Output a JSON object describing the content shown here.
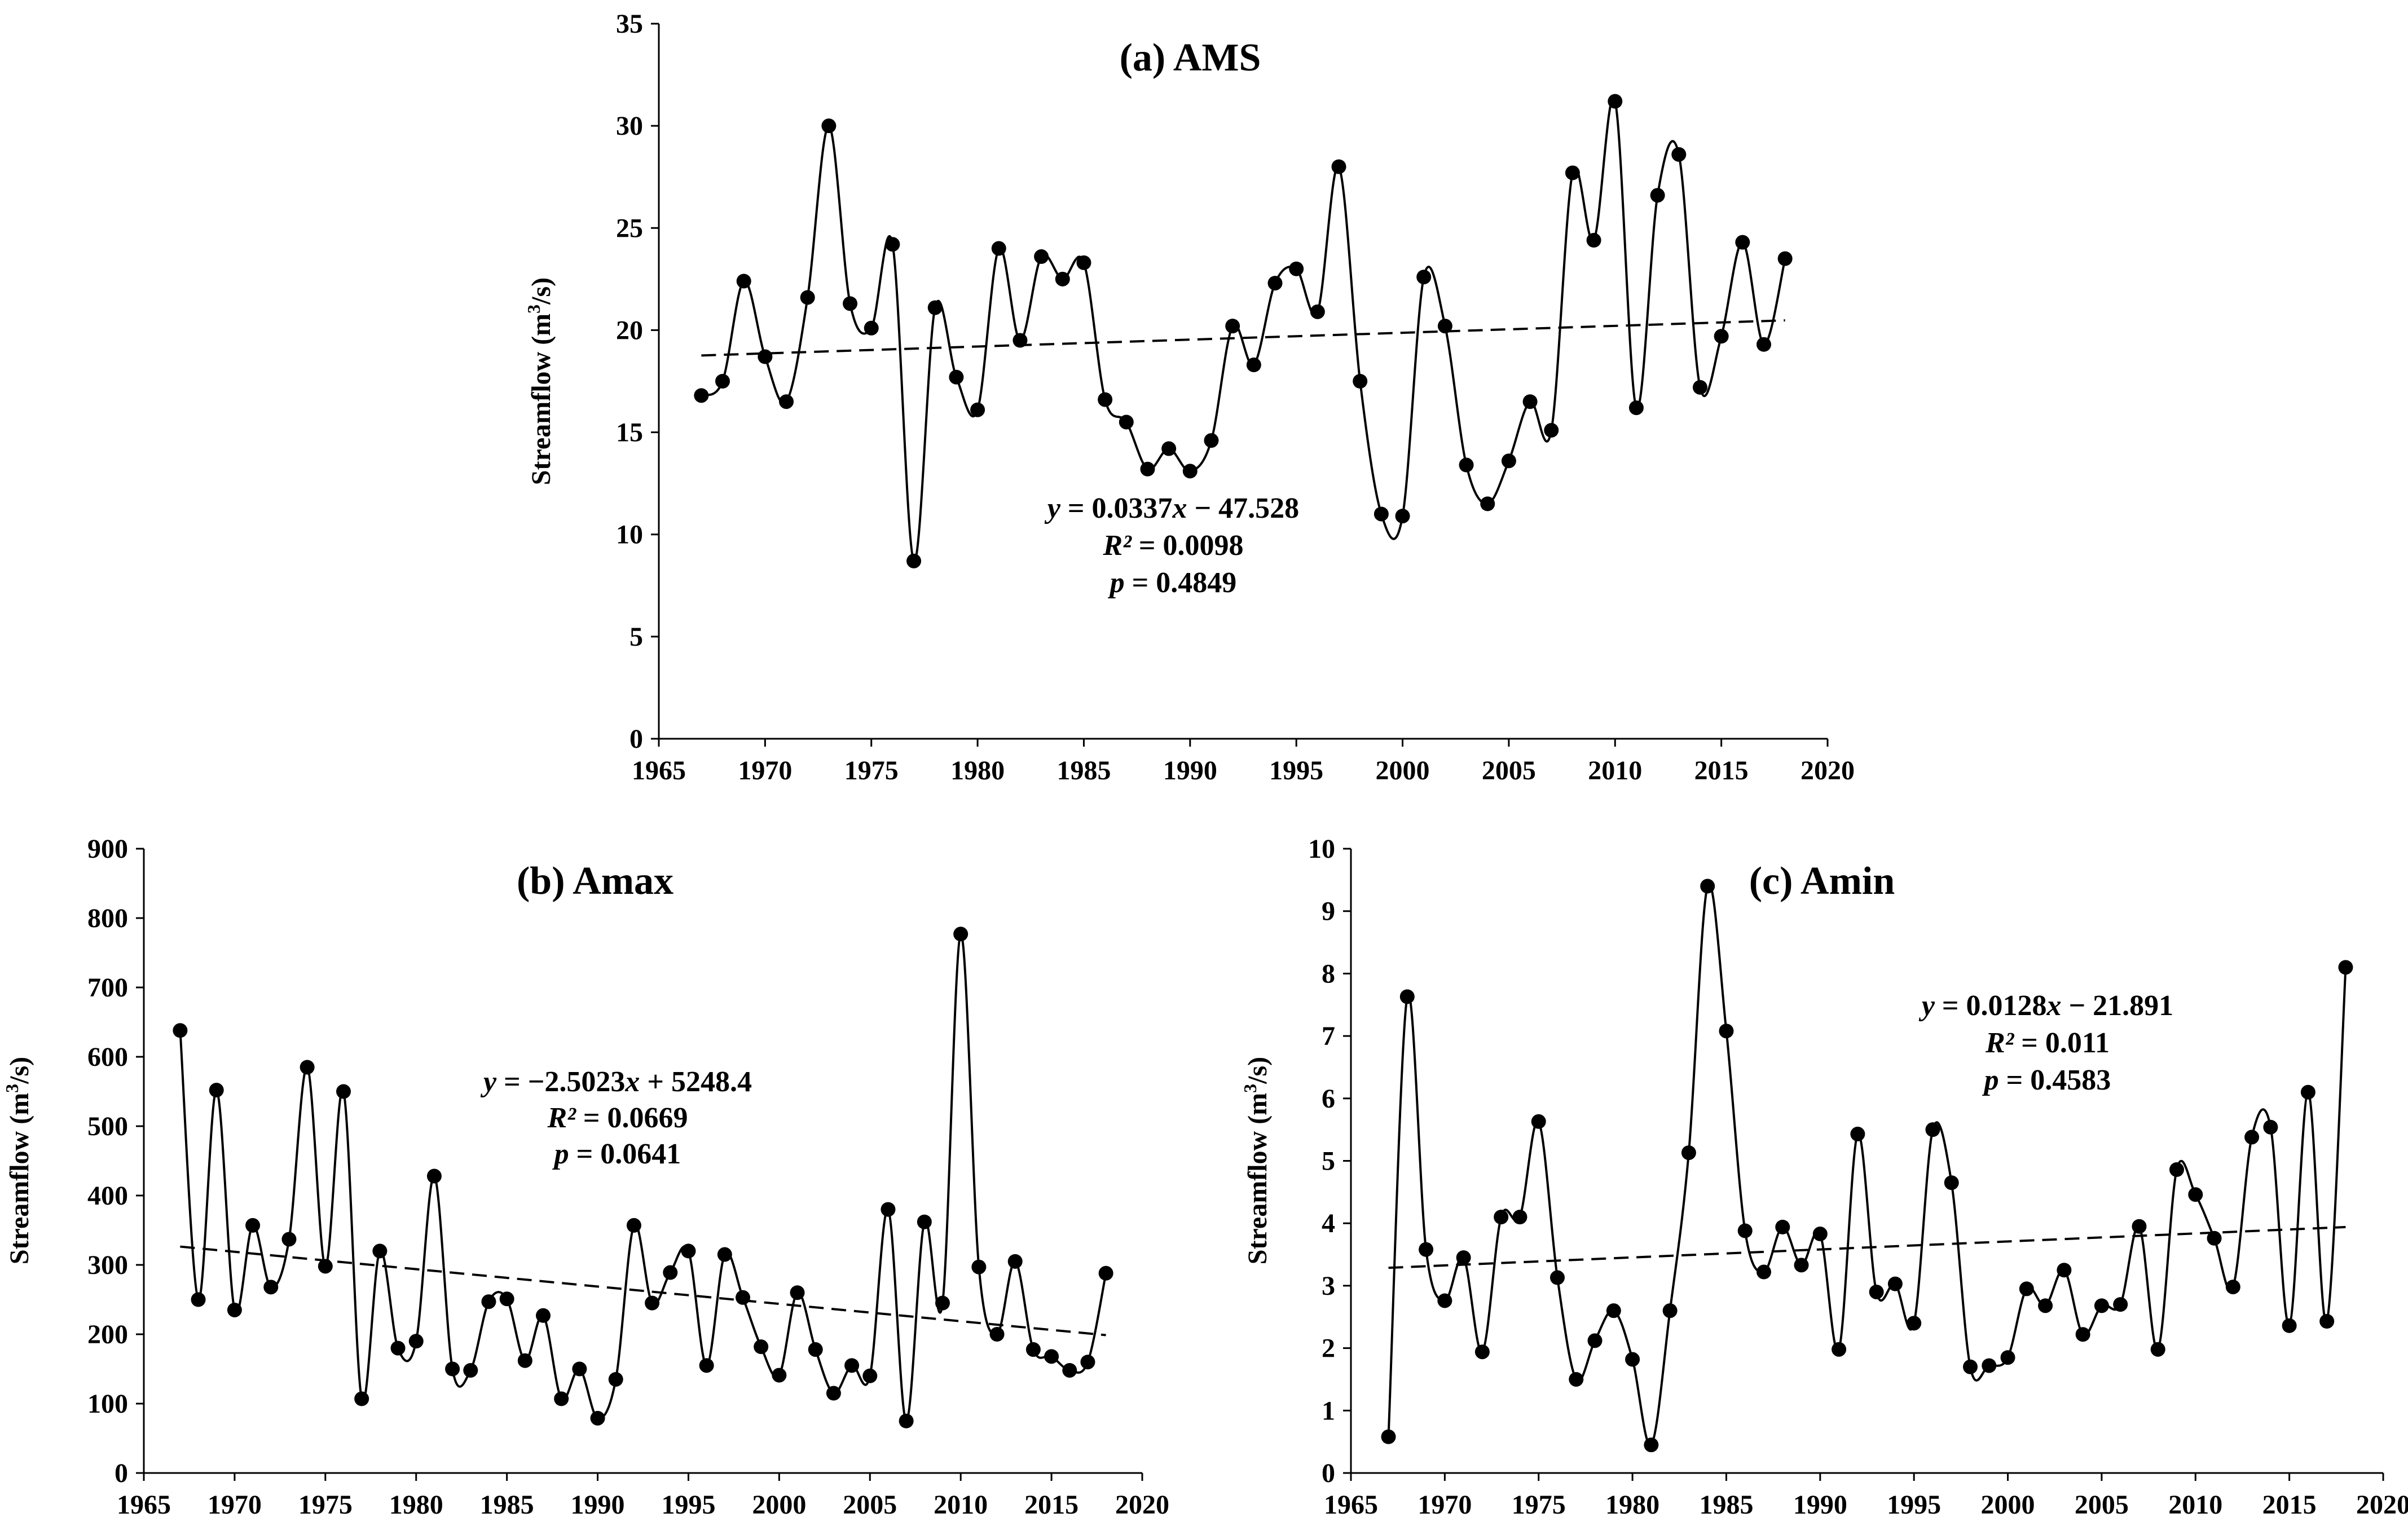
{
  "chart_data": [
    {
      "type": "line",
      "title": "(a) AMS",
      "xlabel": "",
      "ylabel": "Streamflow (m3/s)",
      "ylabel_parts": [
        "Streamflow (m",
        "3",
        "/s)"
      ],
      "xlim": [
        1965,
        2020
      ],
      "ylim": [
        0,
        35
      ],
      "x_ticks": [
        1965,
        1970,
        1975,
        1980,
        1985,
        1990,
        1995,
        2000,
        2005,
        2010,
        2015,
        2020
      ],
      "y_ticks": [
        0,
        5,
        10,
        15,
        20,
        25,
        30,
        35
      ],
      "series": [
        {
          "name": "AMS",
          "x": [
            1967,
            1968,
            1969,
            1970,
            1971,
            1972,
            1973,
            1974,
            1975,
            1976,
            1977,
            1978,
            1979,
            1980,
            1981,
            1982,
            1983,
            1984,
            1985,
            1986,
            1987,
            1988,
            1989,
            1990,
            1991,
            1992,
            1993,
            1994,
            1995,
            1996,
            1997,
            1998,
            1999,
            2000,
            2001,
            2002,
            2003,
            2004,
            2005,
            2006,
            2007,
            2008,
            2009,
            2010,
            2011,
            2012,
            2013,
            2014,
            2015,
            2016,
            2017,
            2018
          ],
          "values": [
            16.8,
            17.5,
            22.4,
            18.7,
            16.5,
            21.6,
            30.0,
            21.3,
            20.1,
            24.2,
            8.7,
            21.1,
            17.7,
            16.1,
            24.0,
            19.5,
            23.6,
            22.5,
            23.3,
            16.6,
            15.5,
            13.2,
            14.2,
            13.1,
            14.6,
            20.2,
            18.3,
            22.3,
            23.0,
            20.9,
            28.0,
            17.5,
            11.0,
            10.9,
            22.6,
            20.2,
            13.4,
            11.5,
            13.6,
            16.5,
            15.1,
            27.7,
            24.4,
            31.2,
            16.2,
            26.6,
            28.6,
            17.2,
            19.7,
            24.3,
            19.3,
            23.5
          ]
        }
      ],
      "trend": {
        "slope": 0.0337,
        "intercept": -47.528
      },
      "equation_lines": [
        {
          "var": "y",
          "text": " = 0.0337",
          "var2": "x",
          "text2": " − 47.528"
        },
        {
          "var": "R²",
          "text": " = 0.0098"
        },
        {
          "var": "p",
          "text": " = 0.4849"
        }
      ]
    },
    {
      "type": "line",
      "title": "(b) Amax",
      "xlabel": "",
      "ylabel": "Streamflow (m3/s)",
      "ylabel_parts": [
        "Streamflow (m",
        "3",
        "/s)"
      ],
      "xlim": [
        1965,
        2020
      ],
      "ylim": [
        0,
        900
      ],
      "x_ticks": [
        1965,
        1970,
        1975,
        1980,
        1985,
        1990,
        1995,
        2000,
        2005,
        2010,
        2015,
        2020
      ],
      "y_ticks": [
        0,
        100,
        200,
        300,
        400,
        500,
        600,
        700,
        800,
        900
      ],
      "series": [
        {
          "name": "Amax",
          "x": [
            1967,
            1968,
            1969,
            1970,
            1971,
            1972,
            1973,
            1974,
            1975,
            1976,
            1977,
            1978,
            1979,
            1980,
            1981,
            1982,
            1983,
            1984,
            1985,
            1986,
            1987,
            1988,
            1989,
            1990,
            1991,
            1992,
            1993,
            1994,
            1995,
            1996,
            1997,
            1998,
            1999,
            2000,
            2001,
            2002,
            2003,
            2004,
            2005,
            2006,
            2007,
            2008,
            2009,
            2010,
            2011,
            2012,
            2013,
            2014,
            2015,
            2016,
            2017,
            2018
          ],
          "values": [
            638,
            250,
            552,
            235,
            357,
            268,
            337,
            585,
            298,
            550,
            107,
            320,
            180,
            190,
            428,
            150,
            148,
            247,
            251,
            162,
            227,
            107,
            150,
            79,
            135,
            357,
            245,
            289,
            320,
            155,
            315,
            253,
            182,
            141,
            260,
            178,
            115,
            155,
            140,
            380,
            75,
            362,
            245,
            777,
            297,
            200,
            305,
            178,
            168,
            148,
            160,
            288
          ]
        }
      ],
      "trend": {
        "slope": -2.5023,
        "intercept": 5248.4
      },
      "equation_lines": [
        {
          "var": "y",
          "text": " = −2.5023",
          "var2": "x",
          "text2": " + 5248.4"
        },
        {
          "var": "R²",
          "text": " = 0.0669"
        },
        {
          "var": "p",
          "text": " = 0.0641"
        }
      ]
    },
    {
      "type": "line",
      "title": "(c) Amin",
      "xlabel": "",
      "ylabel": "Streamflow (m3/s)",
      "ylabel_parts": [
        "Streamflow (m",
        "3",
        "/s)"
      ],
      "xlim": [
        1965,
        2020
      ],
      "ylim": [
        0,
        10
      ],
      "x_ticks": [
        1965,
        1970,
        1975,
        1980,
        1985,
        1990,
        1995,
        2000,
        2005,
        2010,
        2015,
        2020
      ],
      "y_ticks": [
        0,
        1,
        2,
        3,
        4,
        5,
        6,
        7,
        8,
        9,
        10
      ],
      "series": [
        {
          "name": "Amin",
          "x": [
            1967,
            1968,
            1969,
            1970,
            1971,
            1972,
            1973,
            1974,
            1975,
            1976,
            1977,
            1978,
            1979,
            1980,
            1981,
            1982,
            1983,
            1984,
            1985,
            1986,
            1987,
            1988,
            1989,
            1990,
            1991,
            1992,
            1993,
            1994,
            1995,
            1996,
            1997,
            1998,
            1999,
            2000,
            2001,
            2002,
            2003,
            2004,
            2005,
            2006,
            2007,
            2008,
            2009,
            2010,
            2011,
            2012,
            2013,
            2014,
            2015,
            2016,
            2017,
            2018
          ],
          "values": [
            0.58,
            7.63,
            3.58,
            2.76,
            3.45,
            1.94,
            4.1,
            4.1,
            5.63,
            3.13,
            1.5,
            2.12,
            2.6,
            1.82,
            0.45,
            2.6,
            5.13,
            9.4,
            7.08,
            3.88,
            3.22,
            3.94,
            3.33,
            3.83,
            1.98,
            5.43,
            2.9,
            3.03,
            2.4,
            5.5,
            4.65,
            1.7,
            1.72,
            1.85,
            2.95,
            2.68,
            3.25,
            2.22,
            2.68,
            2.7,
            3.95,
            1.98,
            4.86,
            4.46,
            3.76,
            2.98,
            5.38,
            5.54,
            2.36,
            6.1,
            2.43,
            8.1
          ]
        }
      ],
      "trend": {
        "slope": 0.0128,
        "intercept": -21.891
      },
      "equation_lines": [
        {
          "var": "y",
          "text": " = 0.0128",
          "var2": "x",
          "text2": " − 21.891"
        },
        {
          "var": "R²",
          "text": " = 0.011"
        },
        {
          "var": "p",
          "text": " = 0.4583"
        }
      ]
    }
  ]
}
